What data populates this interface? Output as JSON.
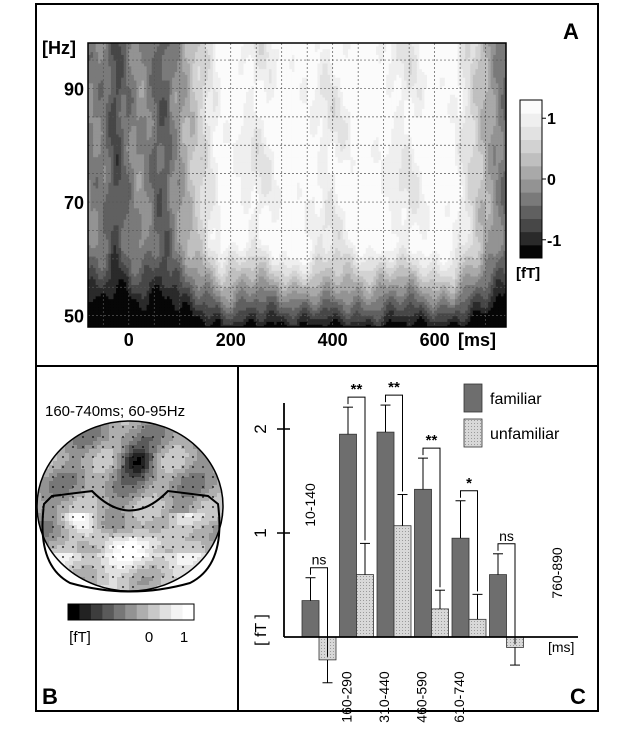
{
  "panels": {
    "a": {
      "letter": "A"
    },
    "b": {
      "letter": "B",
      "title": "160-740ms; 60-95Hz"
    },
    "c": {
      "letter": "C"
    }
  },
  "chart_data": [
    {
      "type": "heatmap",
      "panel": "A",
      "xlabel": "[ms]",
      "ylabel": "[Hz]",
      "xlim": [
        -80,
        740
      ],
      "ylim": [
        48,
        98
      ],
      "x_ticks": [
        "0",
        "200",
        "400",
        "600"
      ],
      "x_tick_values": [
        0,
        200,
        400,
        600
      ],
      "y_ticks": [
        "90",
        "70",
        "50"
      ],
      "y_tick_values": [
        90,
        70,
        50
      ],
      "grid": true,
      "colorbar": {
        "ticks": [
          "1",
          "0",
          "-1"
        ],
        "tick_values": [
          1,
          0,
          -1
        ],
        "unit": "[fT]",
        "range": [
          -1.3,
          1.3
        ]
      },
      "colorscale": [
        "#060606",
        "#2a2a2a",
        "#474747",
        "#606060",
        "#7a7a7a",
        "#939393",
        "#a9a9a9",
        "#bfbfbf",
        "#d2d2d2",
        "#e2e2e2",
        "#efefef",
        "#fbfbfb"
      ]
    },
    {
      "type": "heatmap",
      "panel": "B",
      "description_label": "160-740ms; 60-95Hz",
      "colorbar": {
        "ticks": [
          "[fT]",
          "0",
          "1"
        ],
        "range": [
          -1,
          1
        ]
      },
      "colorscale": [
        "#000000",
        "#222222",
        "#3d3d3d",
        "#5a5a5a",
        "#777777",
        "#939393",
        "#aeaeae",
        "#c8c8c8",
        "#e0e0e0",
        "#f4f4f4",
        "#ffffff"
      ]
    },
    {
      "type": "bar",
      "panel": "C",
      "ylabel": "[ fT ]",
      "xlabel": "[ms]",
      "ylim": [
        -0.3,
        2.3
      ],
      "y_ticks": [
        1,
        2
      ],
      "categories": [
        "10-140",
        "160-290",
        "310-440",
        "460-590",
        "610-740",
        "760-890"
      ],
      "series": [
        {
          "name": "familiar",
          "values": [
            0.35,
            1.95,
            1.97,
            1.42,
            0.95,
            0.6
          ],
          "errors": [
            0.22,
            0.26,
            0.26,
            0.3,
            0.36,
            0.2
          ],
          "color": "#6e6e6e"
        },
        {
          "name": "unfamiliar",
          "values": [
            -0.22,
            0.6,
            1.07,
            0.27,
            0.17,
            -0.1
          ],
          "errors": [
            0.22,
            0.3,
            0.3,
            0.18,
            0.24,
            0.17
          ],
          "color": "#d6d6d6"
        }
      ],
      "significance": [
        "ns",
        "**",
        "**",
        "**",
        "*",
        "ns"
      ]
    }
  ]
}
